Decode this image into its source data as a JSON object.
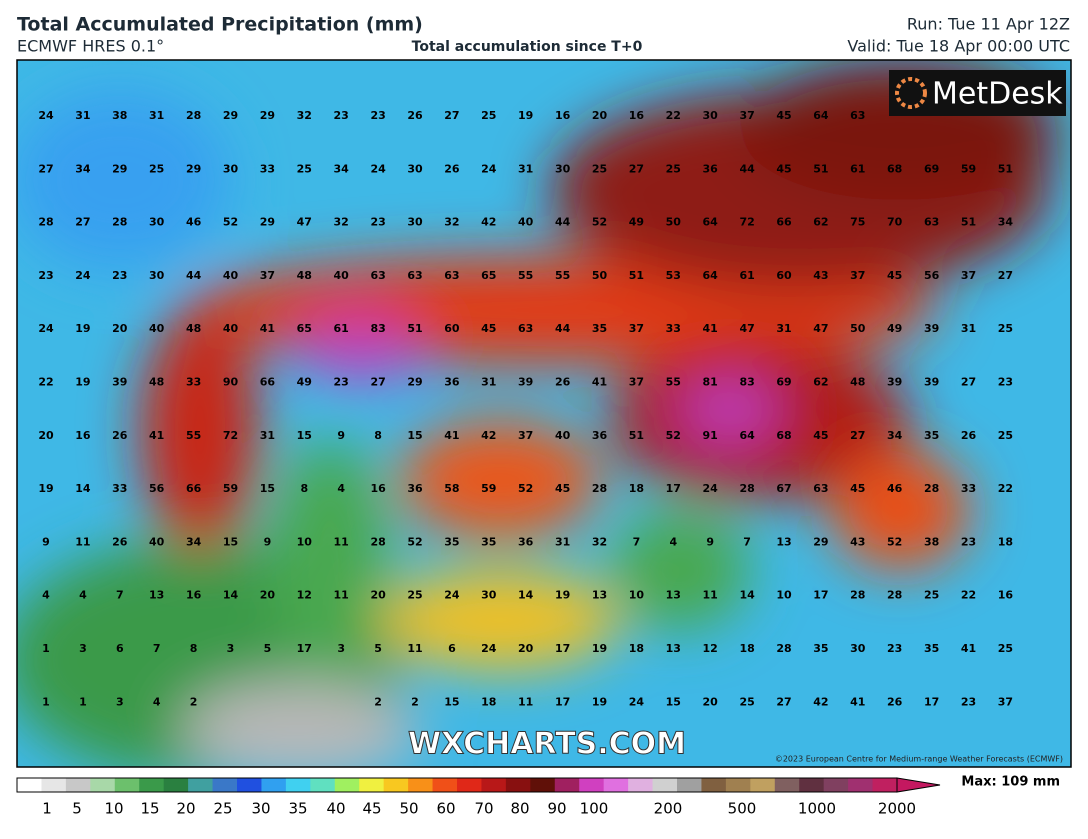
{
  "header": {
    "title": "Total Accumulated Precipitation (mm)",
    "model": "ECMWF HRES 0.1°",
    "subtitle": "Total accumulation since T+0",
    "run": "Run: Tue 11 Apr 12Z",
    "valid": "Valid: Tue 18 Apr 00:00 UTC"
  },
  "logo": "MetDesk",
  "watermark": "WXCHARTS.COM",
  "copyright": "©2023 European Centre for Medium-range Weather Forecasts (ECMWF)",
  "grid": {
    "rows": [
      [
        24,
        31,
        38,
        31,
        28,
        29,
        29,
        32,
        23,
        23,
        26,
        27,
        25,
        19,
        16,
        20,
        16,
        22,
        30,
        37,
        45,
        64,
        63,
        null,
        null,
        null,
        null
      ],
      [
        27,
        34,
        29,
        25,
        29,
        30,
        33,
        25,
        34,
        24,
        30,
        26,
        24,
        31,
        30,
        25,
        27,
        25,
        36,
        44,
        45,
        51,
        61,
        68,
        69,
        59,
        51
      ],
      [
        28,
        27,
        28,
        30,
        46,
        52,
        29,
        47,
        32,
        23,
        30,
        32,
        42,
        40,
        44,
        52,
        49,
        50,
        64,
        72,
        66,
        62,
        75,
        70,
        63,
        51,
        34
      ],
      [
        23,
        24,
        23,
        30,
        44,
        40,
        37,
        48,
        40,
        63,
        63,
        63,
        65,
        55,
        55,
        50,
        51,
        53,
        64,
        61,
        60,
        43,
        37,
        45,
        56,
        37,
        27
      ],
      [
        24,
        19,
        20,
        40,
        48,
        40,
        41,
        65,
        61,
        83,
        51,
        60,
        45,
        63,
        44,
        35,
        37,
        33,
        41,
        47,
        31,
        47,
        50,
        49,
        39,
        31,
        25
      ],
      [
        22,
        19,
        39,
        48,
        33,
        90,
        66,
        49,
        23,
        27,
        29,
        36,
        31,
        39,
        26,
        41,
        37,
        55,
        81,
        83,
        69,
        62,
        48,
        39,
        39,
        27,
        23
      ],
      [
        20,
        16,
        26,
        41,
        55,
        72,
        31,
        15,
        9,
        8,
        15,
        41,
        42,
        37,
        40,
        36,
        51,
        52,
        91,
        64,
        68,
        45,
        27,
        34,
        35,
        26,
        25
      ],
      [
        19,
        14,
        33,
        56,
        66,
        59,
        15,
        8,
        4,
        16,
        36,
        58,
        59,
        52,
        45,
        28,
        18,
        17,
        24,
        28,
        67,
        63,
        45,
        46,
        28,
        33,
        22
      ],
      [
        9,
        11,
        26,
        40,
        34,
        15,
        9,
        10,
        11,
        28,
        52,
        35,
        35,
        36,
        31,
        32,
        7,
        4,
        9,
        7,
        13,
        29,
        43,
        52,
        38,
        23,
        18
      ],
      [
        4,
        4,
        7,
        13,
        16,
        14,
        20,
        12,
        11,
        20,
        25,
        24,
        30,
        14,
        19,
        13,
        10,
        13,
        11,
        14,
        10,
        17,
        28,
        28,
        25,
        22,
        16
      ],
      [
        1,
        3,
        6,
        7,
        8,
        3,
        5,
        17,
        3,
        5,
        11,
        6,
        24,
        20,
        17,
        19,
        18,
        13,
        12,
        18,
        28,
        35,
        30,
        23,
        35,
        41,
        25
      ],
      [
        1,
        1,
        3,
        4,
        2,
        null,
        null,
        null,
        null,
        2,
        2,
        15,
        18,
        11,
        17,
        19,
        24,
        15,
        20,
        25,
        27,
        42,
        41,
        26,
        17,
        23,
        37
      ]
    ]
  },
  "colorbar": {
    "labels": [
      1,
      5,
      10,
      15,
      20,
      25,
      30,
      35,
      40,
      45,
      50,
      60,
      70,
      80,
      90,
      100,
      200,
      500,
      1000,
      2000
    ],
    "max_label": "Max: 109 mm"
  }
}
